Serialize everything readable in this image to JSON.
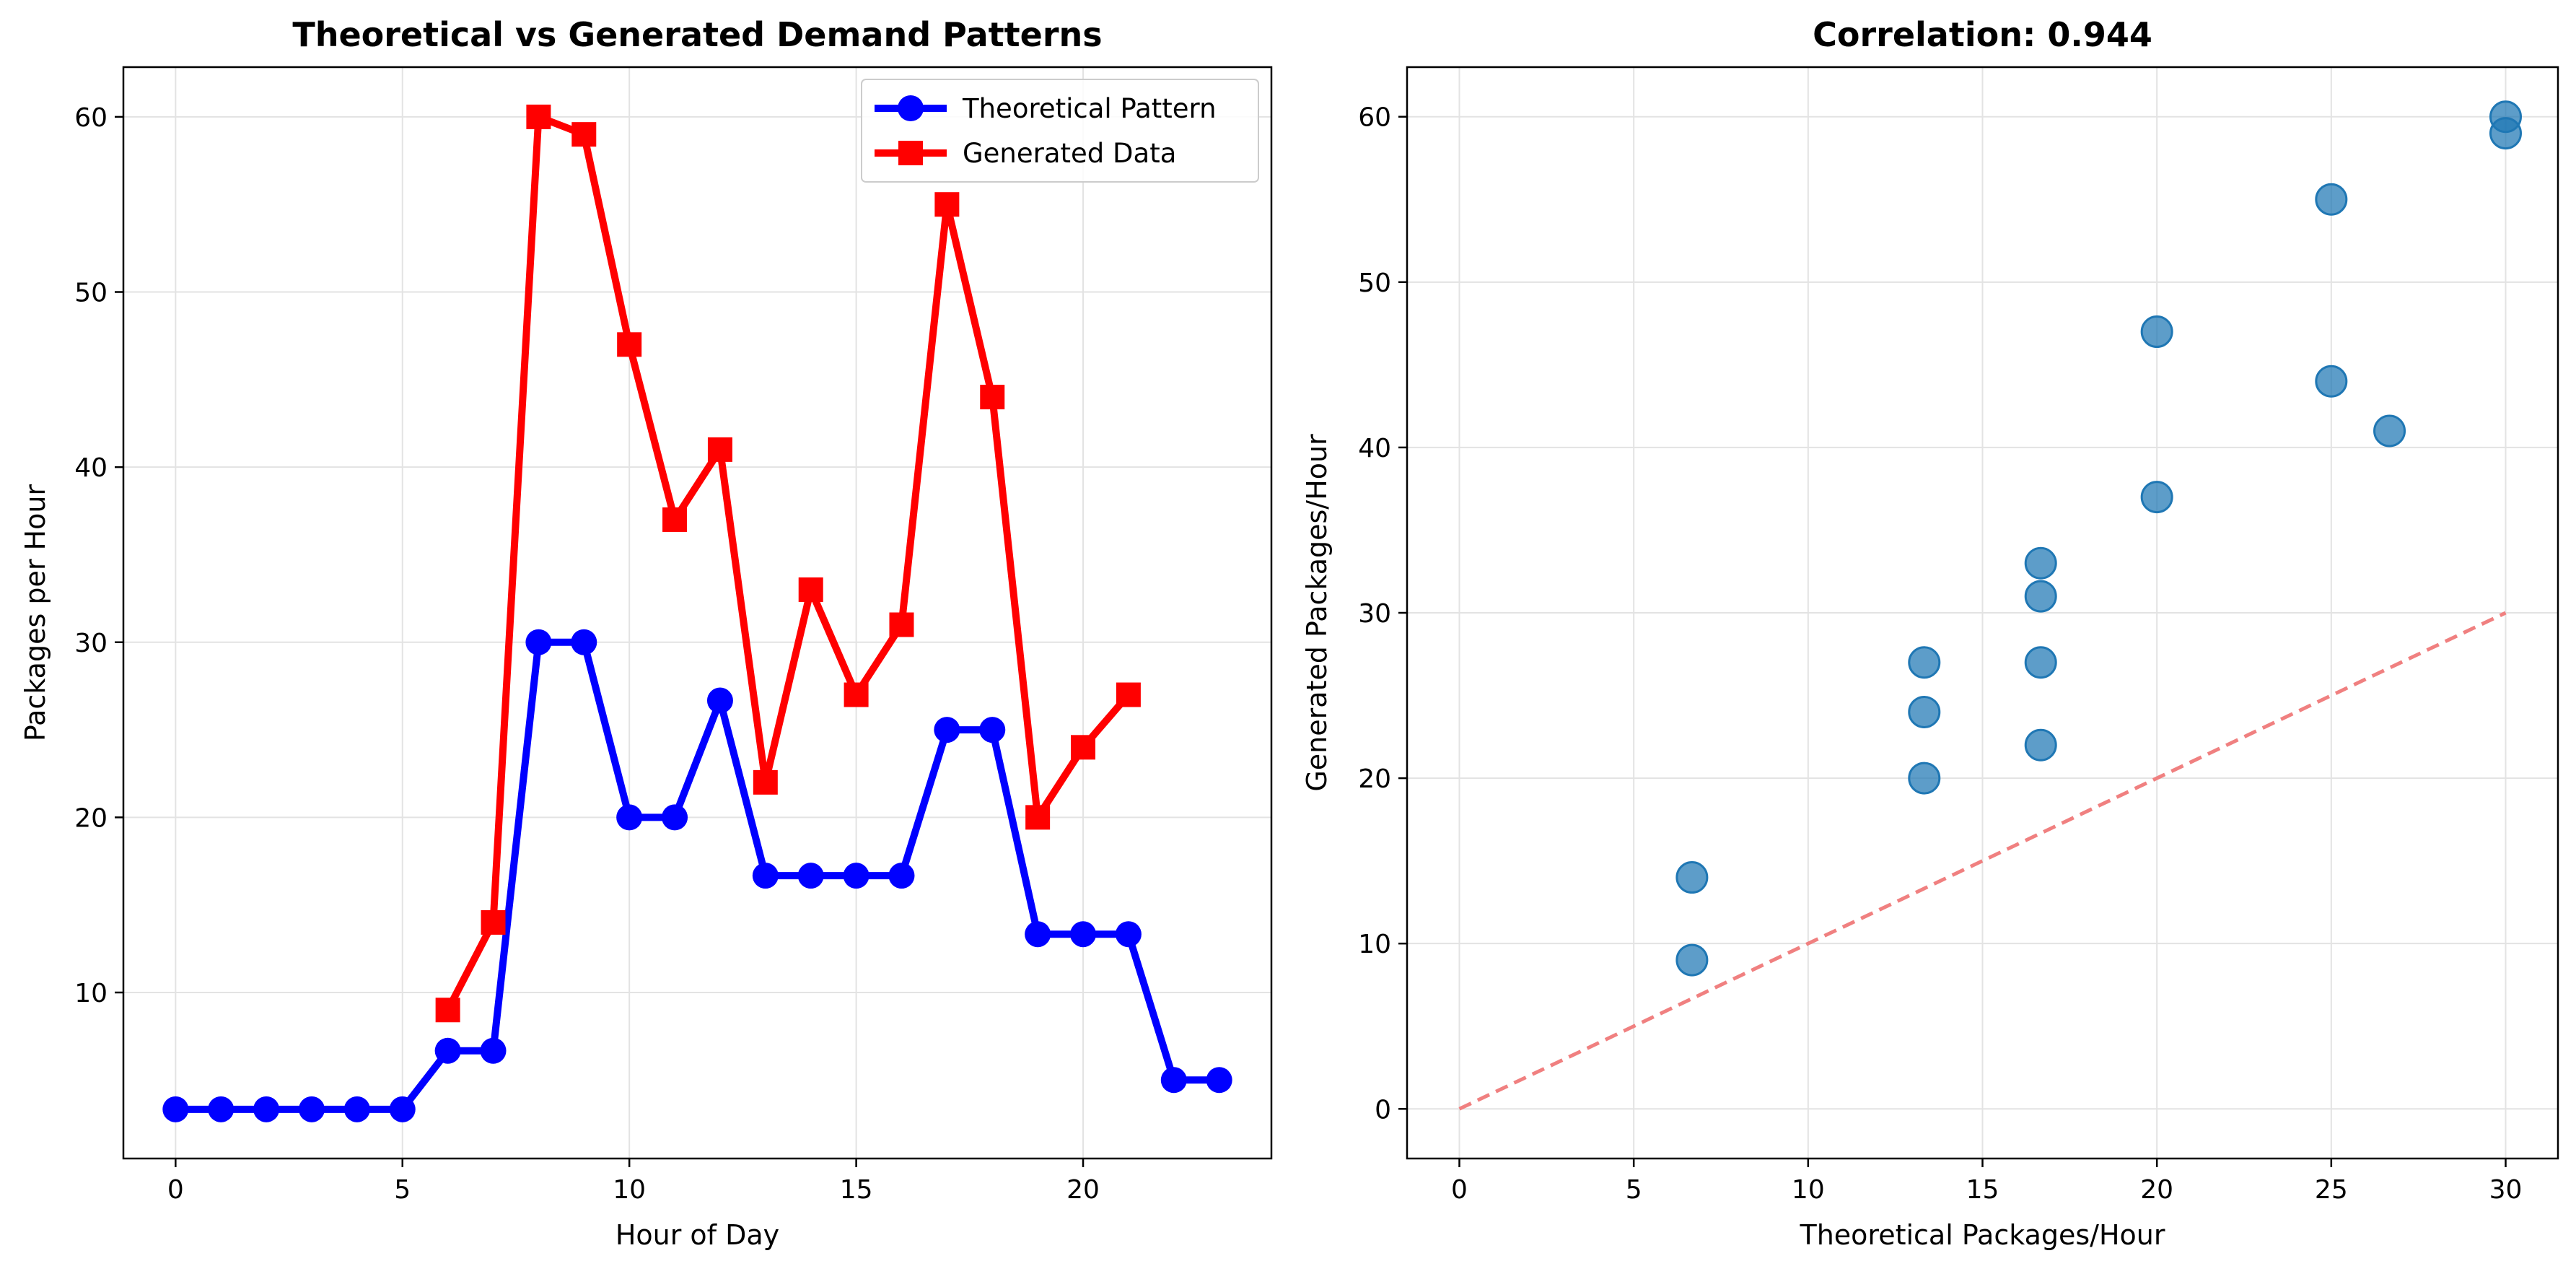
{
  "chart_data": [
    {
      "type": "line",
      "title": "Theoretical vs Generated Demand Patterns",
      "xlabel": "Hour of Day",
      "ylabel": "Packages per Hour",
      "xlim": [
        -1.15,
        24.15
      ],
      "ylim": [
        0.52,
        62.84
      ],
      "xticks": [
        0,
        5,
        10,
        15,
        20
      ],
      "yticks": [
        10,
        20,
        30,
        40,
        50,
        60
      ],
      "grid": true,
      "legend_position": "top-right",
      "series": [
        {
          "name": "Theoretical Pattern",
          "color": "#0000ff",
          "marker": "circle",
          "x": [
            0,
            1,
            2,
            3,
            4,
            5,
            6,
            7,
            8,
            9,
            10,
            11,
            12,
            13,
            14,
            15,
            16,
            17,
            18,
            19,
            20,
            21,
            22,
            23
          ],
          "y": [
            3.33,
            3.33,
            3.33,
            3.33,
            3.33,
            3.33,
            6.67,
            6.67,
            30,
            30,
            20,
            20,
            26.67,
            16.67,
            16.67,
            16.67,
            16.67,
            25,
            25,
            13.33,
            13.33,
            13.33,
            5,
            5
          ]
        },
        {
          "name": "Generated Data",
          "color": "#ff0000",
          "marker": "square",
          "x": [
            6,
            7,
            8,
            9,
            10,
            11,
            12,
            13,
            14,
            15,
            16,
            17,
            18,
            19,
            20,
            21
          ],
          "y": [
            9,
            14,
            60,
            59,
            47,
            37,
            41,
            22,
            33,
            27,
            31,
            55,
            44,
            20,
            24,
            27
          ]
        }
      ]
    },
    {
      "type": "scatter",
      "title": "Correlation: 0.944",
      "xlabel": "Theoretical Packages/Hour",
      "ylabel": "Generated Packages/Hour",
      "xlim": [
        -1.5,
        31.5
      ],
      "ylim": [
        -3,
        63
      ],
      "xticks": [
        0,
        5,
        10,
        15,
        20,
        25,
        30
      ],
      "yticks": [
        0,
        10,
        20,
        30,
        40,
        50,
        60
      ],
      "grid": true,
      "point_color": "#1f77b4",
      "reference_line": {
        "x": [
          0,
          30
        ],
        "y": [
          0,
          30
        ],
        "color": "#f08080",
        "style": "dashed"
      },
      "points": [
        {
          "x": 6.67,
          "y": 9
        },
        {
          "x": 6.67,
          "y": 14
        },
        {
          "x": 30,
          "y": 60
        },
        {
          "x": 30,
          "y": 59
        },
        {
          "x": 20,
          "y": 47
        },
        {
          "x": 20,
          "y": 37
        },
        {
          "x": 26.67,
          "y": 41
        },
        {
          "x": 16.67,
          "y": 22
        },
        {
          "x": 16.67,
          "y": 33
        },
        {
          "x": 16.67,
          "y": 27
        },
        {
          "x": 16.67,
          "y": 31
        },
        {
          "x": 25,
          "y": 55
        },
        {
          "x": 25,
          "y": 44
        },
        {
          "x": 13.33,
          "y": 20
        },
        {
          "x": 13.33,
          "y": 24
        },
        {
          "x": 13.33,
          "y": 27
        }
      ]
    }
  ]
}
